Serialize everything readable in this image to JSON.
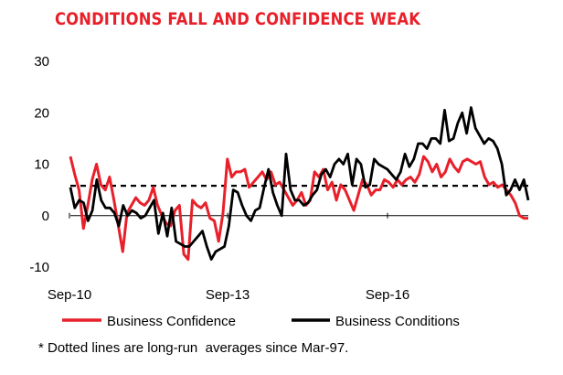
{
  "chart_data": {
    "type": "line",
    "title": "CONDITIONS FALL AND CONFIDENCE WEAK",
    "xlabel": "",
    "ylabel": "",
    "ylim": [
      -10,
      30
    ],
    "yticks": [
      30,
      20,
      10,
      0,
      -10
    ],
    "xticks": [
      "Sep-10",
      "Sep-13",
      "Sep-16"
    ],
    "x_start": "2010-06",
    "x_end": "2019-07",
    "grid": false,
    "legend_position": "bottom",
    "series": [
      {
        "name": "Business Confidence",
        "color": "#e8202a",
        "values": [
          11.5,
          8,
          5,
          -2.5,
          2,
          7,
          10,
          6,
          5,
          7.5,
          3,
          -2,
          -7,
          0.5,
          2,
          3.5,
          2.5,
          2,
          3,
          5.5,
          2,
          0,
          -1.5,
          -2,
          1,
          2,
          -7.5,
          -8.5,
          3,
          2,
          1.5,
          2.5,
          -0.5,
          -1,
          -5,
          0.5,
          11,
          7.5,
          8.5,
          8.5,
          9,
          5.5,
          6.5,
          7.5,
          8.5,
          7,
          8.5,
          6,
          6.5,
          5,
          3.5,
          2,
          3,
          4.5,
          2,
          3,
          8.5,
          7.5,
          9,
          5,
          6.5,
          3,
          6,
          5,
          3,
          1,
          4,
          7,
          6,
          4,
          5,
          5,
          7,
          6.5,
          5.5,
          7,
          6,
          7,
          7.5,
          6.5,
          8,
          11.5,
          10.5,
          8.5,
          10,
          7.5,
          8.5,
          11,
          9.5,
          8.5,
          10.5,
          11,
          10.5,
          10,
          10.5,
          7.5,
          6,
          6.5,
          5.5,
          6,
          5,
          4,
          2.5,
          0,
          -0.5,
          -0.5
        ],
        "dashed_average": 5.8
      },
      {
        "name": "Business Conditions",
        "color": "#000000",
        "values": [
          5.5,
          1.5,
          3,
          2.5,
          -1,
          1,
          7,
          3,
          1.5,
          1.5,
          0.5,
          -2,
          2,
          0,
          1,
          0.5,
          -0.5,
          0,
          1.5,
          3,
          -3.5,
          0.5,
          -4,
          1.5,
          -5,
          -5.5,
          -6,
          -6,
          -5,
          -4,
          -3,
          -6,
          -8.5,
          -7,
          -6.5,
          -6,
          -2,
          5,
          4.5,
          2,
          0,
          -1,
          1,
          1.5,
          5.5,
          9,
          4.5,
          2,
          0,
          12,
          5,
          3,
          3,
          2,
          2.5,
          4,
          5,
          8,
          9,
          7.5,
          10,
          11,
          10,
          12,
          6,
          11,
          10,
          5.5,
          6,
          11,
          10,
          9.5,
          9,
          8,
          7,
          8.5,
          12,
          9.5,
          11,
          14,
          14,
          13,
          15,
          15,
          14,
          20.5,
          14.5,
          15,
          18,
          20,
          16,
          21,
          17,
          15.5,
          14,
          15,
          14.5,
          13,
          10,
          4,
          5,
          7,
          5,
          7,
          3
        ],
        "dashed_average": 5.8
      }
    ],
    "legend": [
      "Business Confidence",
      "Business Conditions"
    ]
  },
  "footnote": "* Dotted lines are long-run  averages since Mar-97."
}
